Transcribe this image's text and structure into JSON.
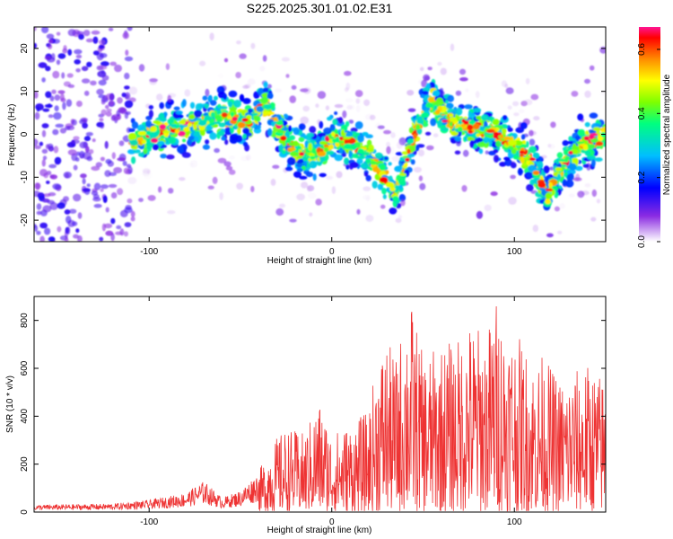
{
  "title": "S225.2025.301.01.02.E31",
  "chart_data": [
    {
      "type": "heatmap",
      "title": "S225.2025.301.01.02.E31",
      "xlabel": "Height of straight line (km)",
      "ylabel": "Frequency (Hz)",
      "xlim": [
        -163,
        150
      ],
      "ylim": [
        -25,
        25
      ],
      "xticks": [
        "-100",
        "0",
        "100"
      ],
      "yticks": [
        "-20",
        "-10",
        "0",
        "10",
        "20"
      ],
      "colorbar": {
        "label": "Normalized spectral amplitude",
        "range": [
          0.0,
          0.67
        ],
        "ticks": [
          "0.0",
          "0.2",
          "0.4",
          "0.6"
        ]
      },
      "ridge": {
        "x": [
          -120,
          -105,
          -90,
          -75,
          -60,
          -45,
          -37,
          -30,
          -20,
          -10,
          0,
          10,
          20,
          30,
          35,
          45,
          55,
          60,
          70,
          80,
          90,
          100,
          108,
          118,
          125,
          135,
          150
        ],
        "y": [
          -5,
          -1,
          1,
          2,
          4,
          3,
          7,
          2,
          -4,
          -5,
          -1,
          -2,
          -5,
          -10,
          -14,
          0,
          9,
          5,
          2,
          1,
          0,
          -3,
          -5,
          -15,
          -8,
          -3,
          0
        ]
      }
    },
    {
      "type": "line",
      "xlabel": "Height of straight line (km)",
      "ylabel": "SNR (10 * v/v)",
      "xlim": [
        -163,
        150
      ],
      "ylim": [
        0,
        900
      ],
      "xticks": [
        "-100",
        "0",
        "100"
      ],
      "yticks": [
        "0",
        "200",
        "400",
        "600",
        "800"
      ],
      "color": "#ee3333",
      "envelope": {
        "x": [
          -163,
          -120,
          -100,
          -80,
          -70,
          -60,
          -50,
          -40,
          -33,
          -25,
          -15,
          -7,
          0,
          10,
          20,
          25,
          30,
          35,
          40,
          43,
          50,
          60,
          70,
          75,
          85,
          90,
          95,
          100,
          110,
          115,
          125,
          140,
          150
        ],
        "y": [
          30,
          35,
          50,
          80,
          130,
          60,
          90,
          170,
          290,
          350,
          330,
          470,
          330,
          370,
          420,
          650,
          720,
          640,
          820,
          900,
          650,
          700,
          730,
          800,
          760,
          900,
          800,
          760,
          640,
          660,
          560,
          620,
          560
        ]
      }
    }
  ]
}
